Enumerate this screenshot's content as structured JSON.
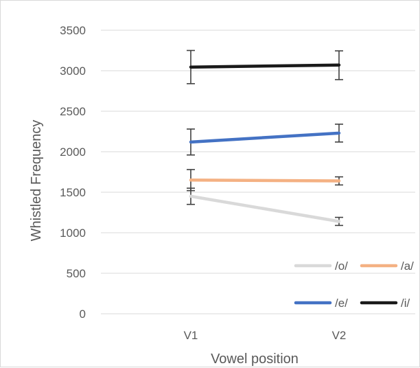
{
  "chart_data": {
    "type": "line",
    "title": "",
    "xlabel": "Vowel position",
    "ylabel": "Whistled Frequency",
    "categories": [
      "V1",
      "V2"
    ],
    "ylim": [
      0,
      3500
    ],
    "yticks": [
      0,
      500,
      1000,
      1500,
      2000,
      2500,
      3000,
      3500
    ],
    "grid": true,
    "legend_position": "bottom-right",
    "series": [
      {
        "name": "/o/",
        "color": "#d9d9d9",
        "values": [
          1450,
          1140
        ],
        "error_low": [
          1350,
          1090
        ],
        "error_high": [
          1550,
          1190
        ]
      },
      {
        "name": "/a/",
        "color": "#f4b183",
        "values": [
          1650,
          1640
        ],
        "error_low": [
          1520,
          1590
        ],
        "error_high": [
          1780,
          1690
        ]
      },
      {
        "name": "/e/",
        "color": "#4472c4",
        "values": [
          2120,
          2230
        ],
        "error_low": [
          1960,
          2120
        ],
        "error_high": [
          2280,
          2340
        ]
      },
      {
        "name": "/i/",
        "color": "#1a1a1a",
        "values": [
          3045,
          3070
        ],
        "error_low": [
          2840,
          2890
        ],
        "error_high": [
          3250,
          3245
        ]
      }
    ],
    "error_bar_color": "#404040",
    "grid_color": "#d9d9d9"
  }
}
